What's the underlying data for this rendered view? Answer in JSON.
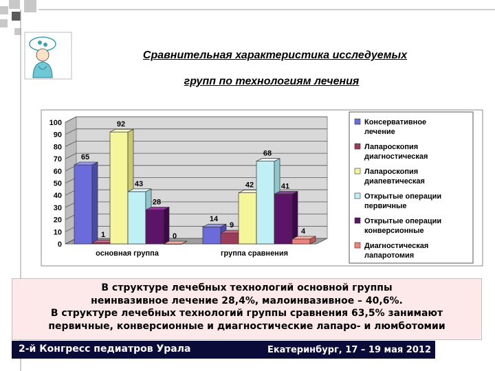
{
  "title": {
    "line1": "Сравнительная характеристика исследуемых",
    "line2": "групп по технологиям лечения"
  },
  "colors": {
    "square_gray": "#c8c8c8",
    "square_dark": "#5a5a5a",
    "footer_bg": "#0b0b3a",
    "info_bg": "#fde9e9"
  },
  "chart_data": {
    "type": "bar",
    "categories": [
      "основная группа",
      "группа сравнения"
    ],
    "ylim": [
      0,
      100
    ],
    "yticks": [
      0,
      10,
      20,
      30,
      40,
      50,
      60,
      70,
      80,
      90,
      100
    ],
    "grid": true,
    "legend_position": "right",
    "series": [
      {
        "name": "Консервативное лечение",
        "values": [
          65,
          14
        ],
        "color": "#6b6bdc",
        "top": "#9a9aee",
        "side": "#4a4aa8"
      },
      {
        "name": "Лапароскопия диагностическая",
        "values": [
          1,
          9
        ],
        "color": "#9a3c5a",
        "top": "#c06a86",
        "side": "#6e2440"
      },
      {
        "name": "Лапароскопия диапевтическая",
        "values": [
          92,
          42
        ],
        "color": "#f5f59a",
        "top": "#fbfbc8",
        "side": "#c8c870"
      },
      {
        "name": "Открытые операции первичные",
        "values": [
          43,
          68
        ],
        "color": "#bff0f5",
        "top": "#e2fafc",
        "side": "#8fc6cc"
      },
      {
        "name": "Открытые операции конверсионные",
        "values": [
          28,
          41
        ],
        "color": "#5c1468",
        "top": "#8a3c96",
        "side": "#3c0848"
      },
      {
        "name": "Диагностическая лапаротомия",
        "values": [
          0,
          4
        ],
        "color": "#f0827a",
        "top": "#f8aca6",
        "side": "#c05a52"
      }
    ]
  },
  "info": {
    "line1": "В структуре лечебных технологий основной группы",
    "line2": "неинвазивное лечение 28,4%, малоинвазивное – 40,6%.",
    "line3": "В структуре лечебных технологий группы сравнения 63,5% занимают",
    "line4": "первичные, конверсионные и диагностические лапаро- и люмботомии"
  },
  "footer": {
    "left": "2-й Конгресс педиатров Урала",
    "right": "Екатеринбург, 17 – 19 мая 2012"
  },
  "logo": {
    "icon": "doctor-nurse-clipart-icon"
  }
}
